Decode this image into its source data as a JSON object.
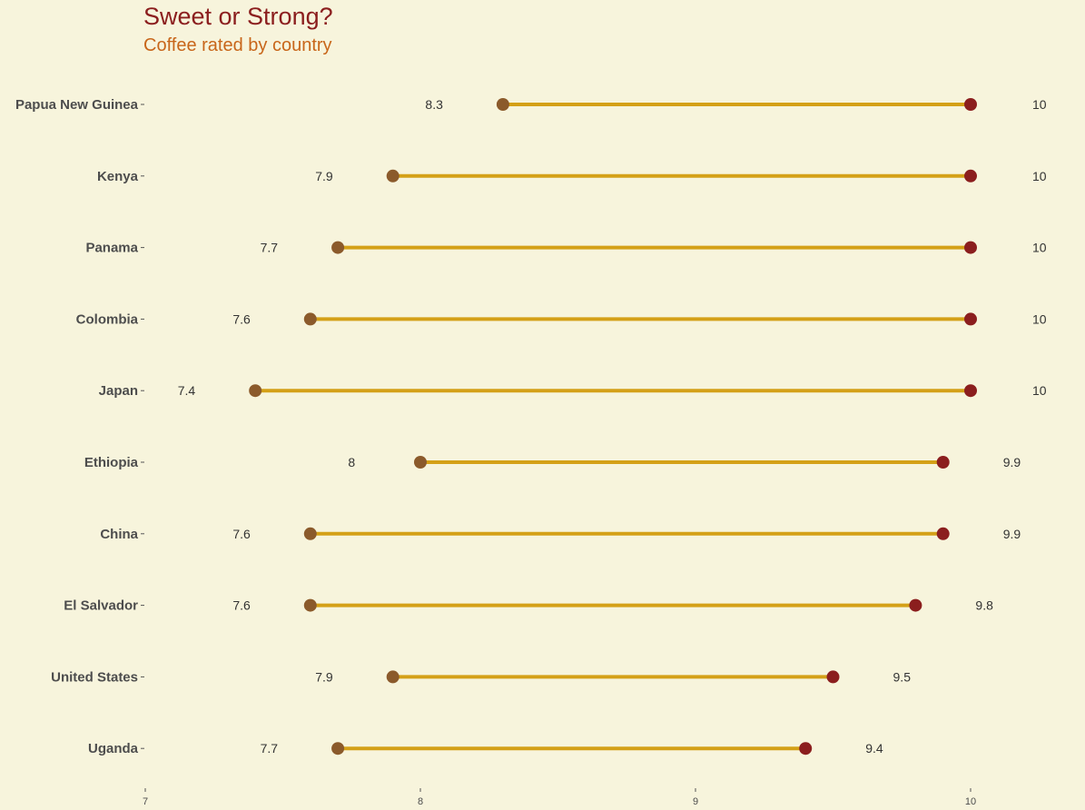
{
  "chart_data": {
    "type": "dumbbell",
    "title": "Sweet or Strong?",
    "subtitle": "Coffee rated by country",
    "xlabel": "",
    "ylabel": "",
    "xlim": [
      7,
      10.3
    ],
    "x_ticks": [
      7,
      8,
      9,
      10
    ],
    "grid": false,
    "categories": [
      "Papua New Guinea",
      "Kenya",
      "Panama",
      "Colombia",
      "Japan",
      "Ethiopia",
      "China",
      "El Salvador",
      "United States",
      "Uganda"
    ],
    "series": [
      {
        "values": [
          8.3,
          7.9,
          7.7,
          7.6,
          7.4,
          8.0,
          7.6,
          7.6,
          7.9,
          7.7
        ]
      },
      {
        "values": [
          10,
          10,
          10,
          10,
          10,
          9.9,
          9.9,
          9.8,
          9.5,
          9.4
        ]
      }
    ],
    "low_labels": [
      "8.3",
      "7.9",
      "7.7",
      "7.6",
      "7.4",
      "8",
      "7.6",
      "7.6",
      "7.9",
      "7.7"
    ],
    "high_labels": [
      "10",
      "10",
      "10",
      "10",
      "10",
      "9.9",
      "9.9",
      "9.8",
      "9.5",
      "9.4"
    ],
    "colors": {
      "low_point": "#8B5A2B",
      "high_point": "#8B1E1E",
      "segment": "#D4A017",
      "title": "#8B1E1E",
      "subtitle": "#C8661A",
      "background": "#F7F4DC"
    }
  }
}
